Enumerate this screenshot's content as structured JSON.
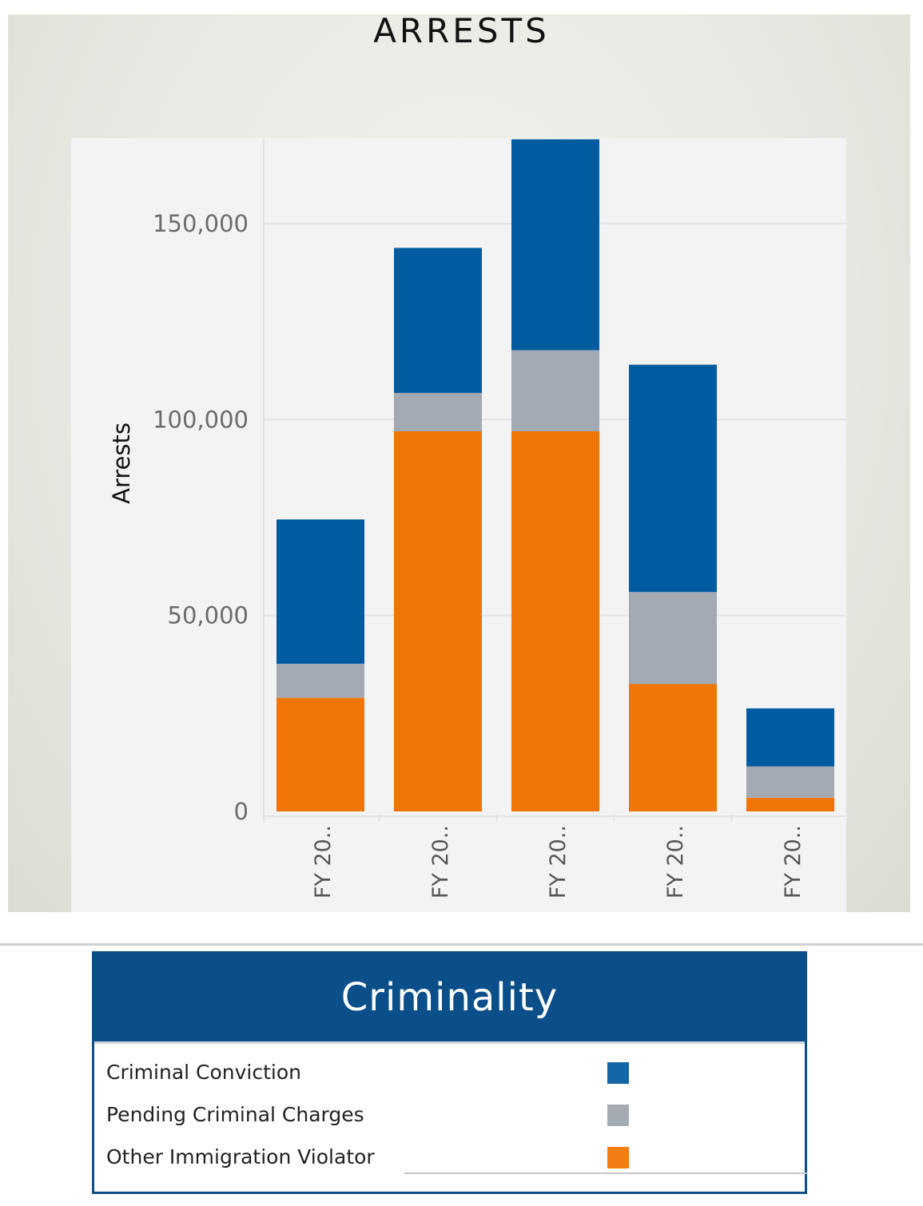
{
  "chart_data": {
    "type": "bar",
    "stacked": true,
    "title": "ARRESTS",
    "xlabel": "",
    "ylabel": "Arrests",
    "ylim": [
      0,
      172000
    ],
    "yticks": [
      0,
      50000,
      100000,
      150000
    ],
    "ytick_labels": [
      "0",
      "50,000",
      "100,000",
      "150,000"
    ],
    "categories": [
      "FY 20..",
      "FY 20..",
      "FY 20..",
      "FY 20..",
      "FY 20.."
    ],
    "series": [
      {
        "name": "Other Immigration Violator",
        "color": "#f07406",
        "values": [
          29000,
          97000,
          97000,
          32500,
          3500
        ]
      },
      {
        "name": "Pending Criminal Charges",
        "color": "#a2a9b3",
        "values": [
          8700,
          9800,
          20700,
          23500,
          8000
        ]
      },
      {
        "name": "Criminal Conviction",
        "color": "#005ba1",
        "values": [
          36800,
          37000,
          53800,
          58000,
          14800
        ]
      }
    ],
    "grid": true,
    "legend": {
      "title": "Criminality",
      "position": "below",
      "items": [
        {
          "label": "Criminal Conviction",
          "color": "#1466a6"
        },
        {
          "label": "Pending Criminal Charges",
          "color": "#a5abb3"
        },
        {
          "label": "Other Immigration Violator",
          "color": "#f47c12"
        }
      ]
    }
  }
}
